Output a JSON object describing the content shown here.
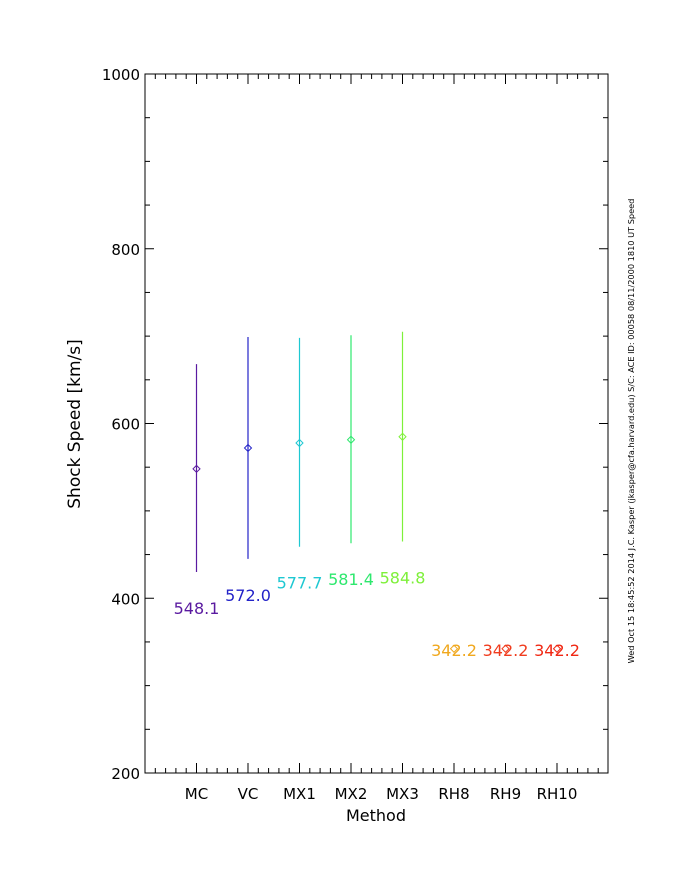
{
  "chart_data": {
    "type": "scatter",
    "title": "",
    "xlabel": "Method",
    "ylabel": "Shock Speed [km/s]",
    "ylim": [
      200,
      1000
    ],
    "yticks": [
      "200",
      "400",
      "600",
      "800",
      "1000"
    ],
    "grid": false,
    "categories": [
      "MC",
      "VC",
      "MX1",
      "MX2",
      "MX3",
      "RH8",
      "RH9",
      "RH10"
    ],
    "points": [
      {
        "category": "MC",
        "value": 548.1,
        "err_low": 430,
        "err_high": 668,
        "label": "548.1",
        "color": "#5a1aa0"
      },
      {
        "category": "VC",
        "value": 572.0,
        "err_low": 445,
        "err_high": 699,
        "label": "572.0",
        "color": "#2323c8"
      },
      {
        "category": "MX1",
        "value": 577.7,
        "err_low": 459,
        "err_high": 698,
        "label": "577.7",
        "color": "#1ec8d2"
      },
      {
        "category": "MX2",
        "value": 581.4,
        "err_low": 463,
        "err_high": 701,
        "label": "581.4",
        "color": "#2ee86e"
      },
      {
        "category": "MX3",
        "value": 584.8,
        "err_low": 465,
        "err_high": 705,
        "label": "584.8",
        "color": "#7ef03a"
      },
      {
        "category": "RH8",
        "value": 342.2,
        "err_low": null,
        "err_high": null,
        "label": "342.2",
        "color": "#f0a81e"
      },
      {
        "category": "RH9",
        "value": 342.2,
        "err_low": null,
        "err_high": null,
        "label": "342.2",
        "color": "#f03c1e"
      },
      {
        "category": "RH10",
        "value": 342.2,
        "err_low": null,
        "err_high": null,
        "label": "342.2",
        "color": "#f02814"
      }
    ]
  },
  "side_annotation": "Wed Oct 15 18:45:52 2014   J.C. Kasper (jkasper@cfa.harvard.edu)   S/C: ACE ID: 00058 08/11/2000  1810 UT Speed"
}
